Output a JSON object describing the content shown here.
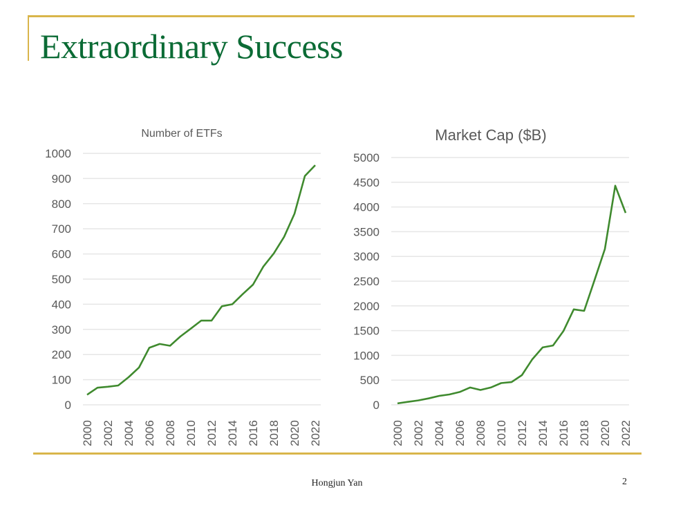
{
  "slide": {
    "title": "Extraordinary Success",
    "footer": "Hongjun Yan",
    "page_number": "2",
    "accent_color": "#d9b54a",
    "title_color": "#0b6b35",
    "line_color": "#3f8a2e"
  },
  "chart_data": [
    {
      "type": "line",
      "title": "Number of ETFs",
      "xlabel": "",
      "ylabel": "",
      "x": [
        2000,
        2001,
        2002,
        2003,
        2004,
        2005,
        2006,
        2007,
        2008,
        2009,
        2010,
        2011,
        2012,
        2013,
        2014,
        2015,
        2016,
        2017,
        2018,
        2019,
        2020,
        2021,
        2022
      ],
      "series": [
        {
          "name": "Number of ETFs",
          "values": [
            40,
            68,
            72,
            77,
            110,
            148,
            227,
            242,
            235,
            272,
            303,
            335,
            335,
            392,
            400,
            440,
            478,
            550,
            602,
            668,
            760,
            910,
            953
          ]
        }
      ],
      "xticks": [
        "2000",
        "2002",
        "2004",
        "2006",
        "2008",
        "2010",
        "2012",
        "2014",
        "2016",
        "2018",
        "2020",
        "2022"
      ],
      "yticks": [
        "0",
        "100",
        "200",
        "300",
        "400",
        "500",
        "600",
        "700",
        "800",
        "900",
        "1000"
      ],
      "ylim": [
        0,
        1000
      ],
      "xlim": [
        2000,
        2022
      ],
      "grid": true,
      "legend": "none"
    },
    {
      "type": "line",
      "title": "Market Cap ($B)",
      "xlabel": "",
      "ylabel": "",
      "x": [
        2000,
        2001,
        2002,
        2003,
        2004,
        2005,
        2006,
        2007,
        2008,
        2009,
        2010,
        2011,
        2012,
        2013,
        2014,
        2015,
        2016,
        2017,
        2018,
        2019,
        2020,
        2021,
        2022
      ],
      "series": [
        {
          "name": "Market Cap ($B)",
          "values": [
            30,
            60,
            90,
            130,
            180,
            210,
            260,
            350,
            300,
            350,
            440,
            460,
            600,
            920,
            1160,
            1200,
            1490,
            1930,
            1900,
            2520,
            3150,
            4430,
            3880
          ]
        }
      ],
      "xticks": [
        "2000",
        "2002",
        "2004",
        "2006",
        "2008",
        "2010",
        "2012",
        "2014",
        "2016",
        "2018",
        "2020",
        "2022"
      ],
      "yticks": [
        "0",
        "500",
        "1000",
        "1500",
        "2000",
        "2500",
        "3000",
        "3500",
        "4000",
        "4500",
        "5000"
      ],
      "ylim": [
        0,
        5000
      ],
      "xlim": [
        2000,
        2022
      ],
      "grid": true,
      "legend": "none"
    }
  ]
}
